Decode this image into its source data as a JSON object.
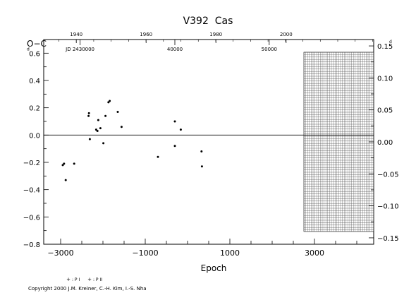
{
  "chart_data": {
    "type": "scatter",
    "title": "V392  Cas",
    "ylabel": "O−C",
    "xlabel": "Epoch",
    "xlim": [
      -3400,
      4400
    ],
    "ylim": [
      -0.8,
      0.7
    ],
    "y_right_lim": [
      -0.16,
      0.16
    ],
    "y_ticks_left": [
      -0.8,
      -0.6,
      -0.4,
      -0.2,
      0.0,
      0.2,
      0.4,
      0.6
    ],
    "y_tick_labels_left": [
      "−0.8",
      "−0.6",
      "−0.4",
      "−0.2",
      "0.0",
      "0.2",
      "0.4",
      "0.6"
    ],
    "y_ticks_right": [
      -0.15,
      -0.1,
      -0.05,
      0.0,
      0.05,
      0.1,
      0.15
    ],
    "y_tick_labels_right": [
      "−0.15",
      "−0.10",
      "−0.05",
      "0.00",
      "0.05",
      "0.10",
      "0.15"
    ],
    "unit_mark": "d",
    "x_ticks": [
      -3000,
      -1000,
      1000,
      3000
    ],
    "x_tick_labels": [
      "−3000",
      "−1000",
      "1000",
      "3000"
    ],
    "top_year_ticks": [
      -2630,
      -980,
      670,
      2330
    ],
    "top_year_labels": [
      "1940",
      "1960",
      "1980",
      "2000"
    ],
    "top_jd_ticks": [
      -2540,
      -300,
      1930
    ],
    "top_jd_labels": [
      "JD 2430000",
      "40000",
      "50000"
    ],
    "future_region_start": 2750,
    "legend": [
      {
        "marker": "+",
        "label": ": P I"
      },
      {
        "marker": "+",
        "label": ": P II"
      }
    ],
    "series": [
      {
        "marker": "dot",
        "x": [
          -2950,
          -2920,
          -2880,
          -2680,
          -2340,
          -2330,
          -2310,
          -2160,
          -2130,
          -2110,
          -2060,
          -1990,
          -1940,
          -1870,
          -1840,
          -1650,
          -1560,
          -700,
          -300,
          -300,
          -160,
          330,
          340
        ],
        "y": [
          -0.22,
          -0.21,
          -0.33,
          -0.21,
          0.14,
          0.16,
          -0.03,
          0.04,
          0.03,
          0.11,
          0.05,
          -0.06,
          0.14,
          0.24,
          0.25,
          0.17,
          0.06,
          -0.16,
          0.1,
          -0.08,
          0.04,
          -0.12,
          -0.23
        ]
      }
    ]
  },
  "copyright": "Copyright 2000 J.M. Kreiner, C.-H. Kim, I.-S. Nha"
}
